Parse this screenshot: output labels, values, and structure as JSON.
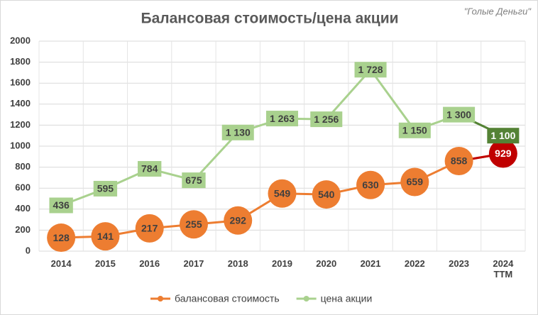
{
  "chart_data": {
    "type": "line",
    "title": "Балансовая стоимость/цена акции",
    "annotation": "\"Голые Деньги\"",
    "categories": [
      "2014",
      "2015",
      "2016",
      "2017",
      "2018",
      "2019",
      "2020",
      "2021",
      "2022",
      "2023",
      "2024\nTTM"
    ],
    "series": [
      {
        "name": "балансовая стоимость",
        "color": "#ED7D31",
        "highlight_color": "#C00000",
        "values": [
          128,
          141,
          217,
          255,
          292,
          549,
          540,
          630,
          659,
          858,
          929
        ]
      },
      {
        "name": "цена акции",
        "color": "#A9D18E",
        "highlight_color": "#548235",
        "values": [
          436,
          595,
          784,
          675,
          1130,
          1263,
          1256,
          1728,
          1150,
          1300,
          1100
        ],
        "value_labels": [
          "436",
          "595",
          "784",
          "675",
          "1 130",
          "1 263",
          "1 256",
          "1 728",
          "1 150",
          "1 300",
          "1 100"
        ]
      }
    ],
    "ylim": [
      0,
      2000
    ],
    "yticks": [
      0,
      200,
      400,
      600,
      800,
      1000,
      1200,
      1400,
      1600,
      1800,
      2000
    ],
    "grid": true,
    "legend": "bottom"
  }
}
